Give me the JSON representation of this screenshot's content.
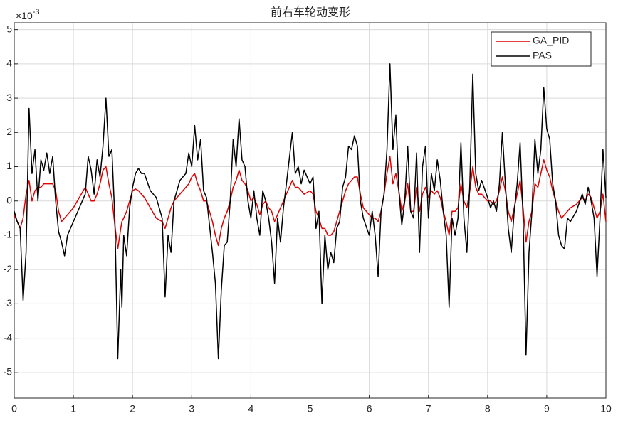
{
  "chart_data": {
    "type": "line",
    "title": "前右车轮动变形",
    "y_multiplier": {
      "base": "×10",
      "exponent": "-3"
    },
    "x": [
      0,
      0.05,
      0.1,
      0.15,
      0.2,
      0.25,
      0.3,
      0.35,
      0.4,
      0.45,
      0.5,
      0.55,
      0.6,
      0.65,
      0.7,
      0.75,
      0.8,
      0.85,
      0.9,
      1.0,
      1.1,
      1.2,
      1.25,
      1.3,
      1.35,
      1.4,
      1.45,
      1.5,
      1.55,
      1.6,
      1.65,
      1.7,
      1.75,
      1.8,
      1.82,
      1.85,
      1.9,
      1.95,
      2.0,
      2.05,
      2.1,
      2.15,
      2.2,
      2.3,
      2.4,
      2.5,
      2.55,
      2.6,
      2.65,
      2.7,
      2.8,
      2.9,
      2.95,
      3.0,
      3.05,
      3.1,
      3.15,
      3.2,
      3.25,
      3.3,
      3.35,
      3.4,
      3.45,
      3.5,
      3.55,
      3.6,
      3.65,
      3.7,
      3.75,
      3.8,
      3.85,
      3.9,
      3.95,
      4.0,
      4.05,
      4.1,
      4.15,
      4.2,
      4.25,
      4.3,
      4.35,
      4.4,
      4.45,
      4.5,
      4.55,
      4.6,
      4.7,
      4.75,
      4.8,
      4.85,
      4.9,
      5.0,
      5.05,
      5.1,
      5.15,
      5.2,
      5.25,
      5.3,
      5.35,
      5.4,
      5.45,
      5.5,
      5.55,
      5.6,
      5.65,
      5.7,
      5.75,
      5.8,
      5.85,
      5.9,
      6.0,
      6.05,
      6.1,
      6.15,
      6.2,
      6.25,
      6.3,
      6.35,
      6.4,
      6.45,
      6.5,
      6.55,
      6.6,
      6.65,
      6.7,
      6.75,
      6.8,
      6.85,
      6.9,
      6.95,
      7.0,
      7.05,
      7.1,
      7.15,
      7.2,
      7.25,
      7.3,
      7.35,
      7.4,
      7.45,
      7.5,
      7.55,
      7.6,
      7.65,
      7.7,
      7.75,
      7.8,
      7.85,
      7.9,
      8.0,
      8.05,
      8.1,
      8.15,
      8.2,
      8.25,
      8.3,
      8.35,
      8.4,
      8.45,
      8.5,
      8.55,
      8.6,
      8.65,
      8.7,
      8.75,
      8.8,
      8.85,
      8.9,
      8.95,
      9.0,
      9.05,
      9.1,
      9.15,
      9.2,
      9.25,
      9.3,
      9.35,
      9.4,
      9.5,
      9.6,
      9.65,
      9.7,
      9.75,
      9.8,
      9.85,
      9.9,
      9.95,
      10.0
    ],
    "series": [
      {
        "name": "GA_PID",
        "color": "#e00000",
        "values": [
          -0.4,
          -0.6,
          -0.8,
          -0.5,
          0.2,
          0.6,
          0.0,
          0.3,
          0.4,
          0.4,
          0.5,
          0.5,
          0.5,
          0.5,
          0.3,
          -0.3,
          -0.6,
          -0.5,
          -0.4,
          -0.2,
          0.1,
          0.4,
          0.2,
          0.0,
          0.0,
          0.2,
          0.5,
          0.9,
          1.0,
          0.5,
          0.1,
          -0.7,
          -1.4,
          -0.8,
          -0.6,
          -0.5,
          -0.3,
          0.0,
          0.3,
          0.35,
          0.3,
          0.2,
          0.1,
          -0.2,
          -0.5,
          -0.6,
          -0.8,
          -0.5,
          -0.2,
          0.0,
          0.2,
          0.4,
          0.5,
          0.7,
          0.8,
          0.5,
          0.3,
          0.0,
          0.0,
          -0.3,
          -0.6,
          -1.0,
          -1.3,
          -0.8,
          -0.5,
          -0.3,
          0.0,
          0.4,
          0.6,
          0.9,
          0.6,
          0.5,
          0.3,
          0.0,
          0.1,
          -0.1,
          -0.4,
          -0.1,
          0.0,
          -0.2,
          -0.3,
          -0.6,
          -0.4,
          -0.2,
          0.0,
          0.2,
          0.6,
          0.4,
          0.4,
          0.3,
          0.2,
          0.3,
          0.2,
          -0.3,
          -0.5,
          -0.8,
          -0.8,
          -1.0,
          -1.0,
          -0.9,
          -0.6,
          -0.3,
          0.0,
          0.3,
          0.5,
          0.6,
          0.7,
          0.7,
          0.2,
          -0.2,
          -0.4,
          -0.5,
          -0.5,
          -0.6,
          -0.3,
          0.2,
          0.8,
          1.3,
          0.5,
          0.8,
          0.3,
          -0.3,
          0.0,
          0.5,
          -0.3,
          -0.3,
          0.4,
          -0.3,
          0.2,
          0.4,
          0.1,
          0.3,
          0.2,
          0.3,
          0.1,
          -0.3,
          -0.6,
          -1.0,
          -0.3,
          -0.3,
          -0.2,
          0.5,
          0.0,
          -0.2,
          0.3,
          1.0,
          0.4,
          0.2,
          0.2,
          0.0,
          0.0,
          -0.1,
          0.0,
          0.3,
          0.7,
          0.3,
          -0.3,
          -0.6,
          -0.2,
          0.2,
          0.6,
          -0.2,
          -1.2,
          -0.6,
          -0.3,
          0.5,
          0.4,
          0.8,
          1.2,
          0.9,
          0.7,
          0.3,
          0.0,
          -0.3,
          -0.5,
          -0.4,
          -0.3,
          -0.2,
          -0.1,
          0.1,
          0.0,
          0.2,
          0.1,
          -0.2,
          -0.5,
          -0.3,
          0.2,
          -0.6
        ]
      },
      {
        "name": "PAS",
        "color": "#000000",
        "values": [
          -0.3,
          -0.6,
          -0.8,
          -2.9,
          -1.5,
          2.7,
          0.8,
          1.5,
          0.0,
          1.2,
          0.9,
          1.4,
          0.8,
          1.3,
          0.0,
          -0.9,
          -1.2,
          -1.6,
          -1.0,
          -0.6,
          -0.2,
          0.2,
          1.3,
          0.9,
          0.2,
          1.2,
          0.7,
          1.6,
          3.0,
          1.3,
          1.5,
          -0.5,
          -4.6,
          -2.0,
          -3.1,
          -1.0,
          -1.6,
          -0.2,
          0.4,
          0.8,
          0.95,
          0.8,
          0.8,
          0.3,
          0.1,
          -0.5,
          -2.8,
          -1.0,
          -1.5,
          0.0,
          0.6,
          0.8,
          1.4,
          1.0,
          2.2,
          1.2,
          1.8,
          0.3,
          0.1,
          -0.7,
          -1.5,
          -2.4,
          -4.6,
          -2.6,
          -1.3,
          -1.2,
          0.0,
          1.8,
          1.0,
          2.4,
          1.2,
          1.0,
          0.0,
          -0.5,
          0.3,
          -0.5,
          -1.0,
          0.3,
          0.0,
          -0.5,
          -1.2,
          -2.4,
          -0.5,
          -1.2,
          -0.2,
          0.5,
          2.0,
          0.8,
          1.0,
          0.5,
          0.9,
          0.5,
          0.7,
          -0.8,
          -0.3,
          -3.0,
          -1.0,
          -2.0,
          -1.5,
          -1.8,
          -0.8,
          -0.6,
          0.4,
          0.7,
          1.6,
          1.5,
          1.9,
          1.6,
          0.0,
          -0.5,
          -1.0,
          -0.3,
          -1.0,
          -2.2,
          -0.3,
          0.2,
          1.5,
          4.0,
          1.5,
          2.5,
          0.3,
          -0.7,
          0.0,
          1.6,
          -0.3,
          -0.5,
          1.4,
          -1.5,
          1.0,
          1.6,
          -0.5,
          0.8,
          0.3,
          1.2,
          0.6,
          -0.3,
          -1.0,
          -3.1,
          -0.5,
          -1.0,
          -0.5,
          1.7,
          -0.5,
          -1.5,
          0.5,
          3.7,
          0.8,
          0.3,
          0.6,
          0.1,
          -0.2,
          0.0,
          -0.3,
          0.5,
          2.0,
          0.5,
          -0.8,
          -1.5,
          -0.3,
          0.5,
          1.7,
          -0.5,
          -4.5,
          -1.5,
          -0.3,
          1.8,
          0.8,
          1.5,
          3.3,
          2.1,
          1.8,
          0.5,
          0.0,
          -1.0,
          -1.3,
          -1.4,
          -0.5,
          -0.6,
          -0.3,
          0.2,
          -0.1,
          0.4,
          0.0,
          -0.5,
          -2.2,
          -0.5,
          1.5,
          0.1
        ]
      }
    ],
    "xlim": [
      0,
      10
    ],
    "xticks": [
      0,
      1,
      2,
      3,
      4,
      5,
      6,
      7,
      8,
      9,
      10
    ],
    "ylim": [
      -5.75,
      5.2
    ],
    "yticks": [
      -5,
      -4,
      -3,
      -2,
      -1,
      0,
      1,
      2,
      3,
      4,
      5
    ],
    "grid": true,
    "legend": "upper right"
  }
}
